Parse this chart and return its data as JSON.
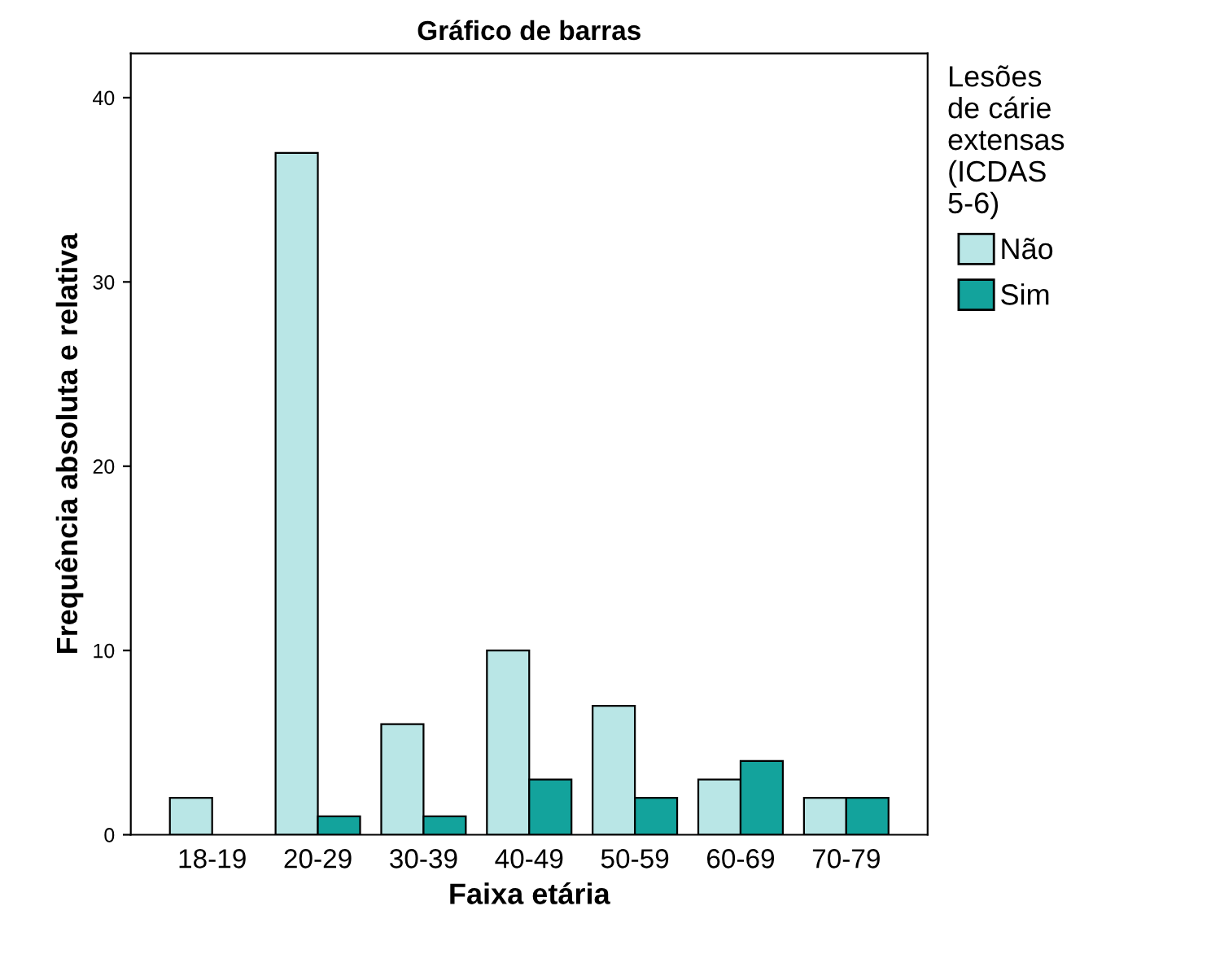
{
  "chart_data": {
    "type": "bar",
    "title": "Gráfico de barras",
    "xlabel": "Faixa etária",
    "ylabel": "Frequência absoluta e relativa",
    "legend_title": "Lesões\nde cárie\nextensas\n(ICDAS\n5-6)",
    "categories": [
      "18-19",
      "20-29",
      "30-39",
      "40-49",
      "50-59",
      "60-69",
      "70-79"
    ],
    "series": [
      {
        "name": "Não",
        "color": "#b9e6e6",
        "values": [
          2,
          37,
          6,
          10,
          7,
          3,
          2
        ]
      },
      {
        "name": "Sim",
        "color": "#13a39c",
        "values": [
          null,
          1,
          1,
          3,
          2,
          4,
          2
        ]
      }
    ],
    "ylim": [
      0,
      42.4
    ],
    "yticks": [
      0,
      10,
      20,
      30,
      40
    ],
    "grid": false,
    "legend": "right"
  }
}
